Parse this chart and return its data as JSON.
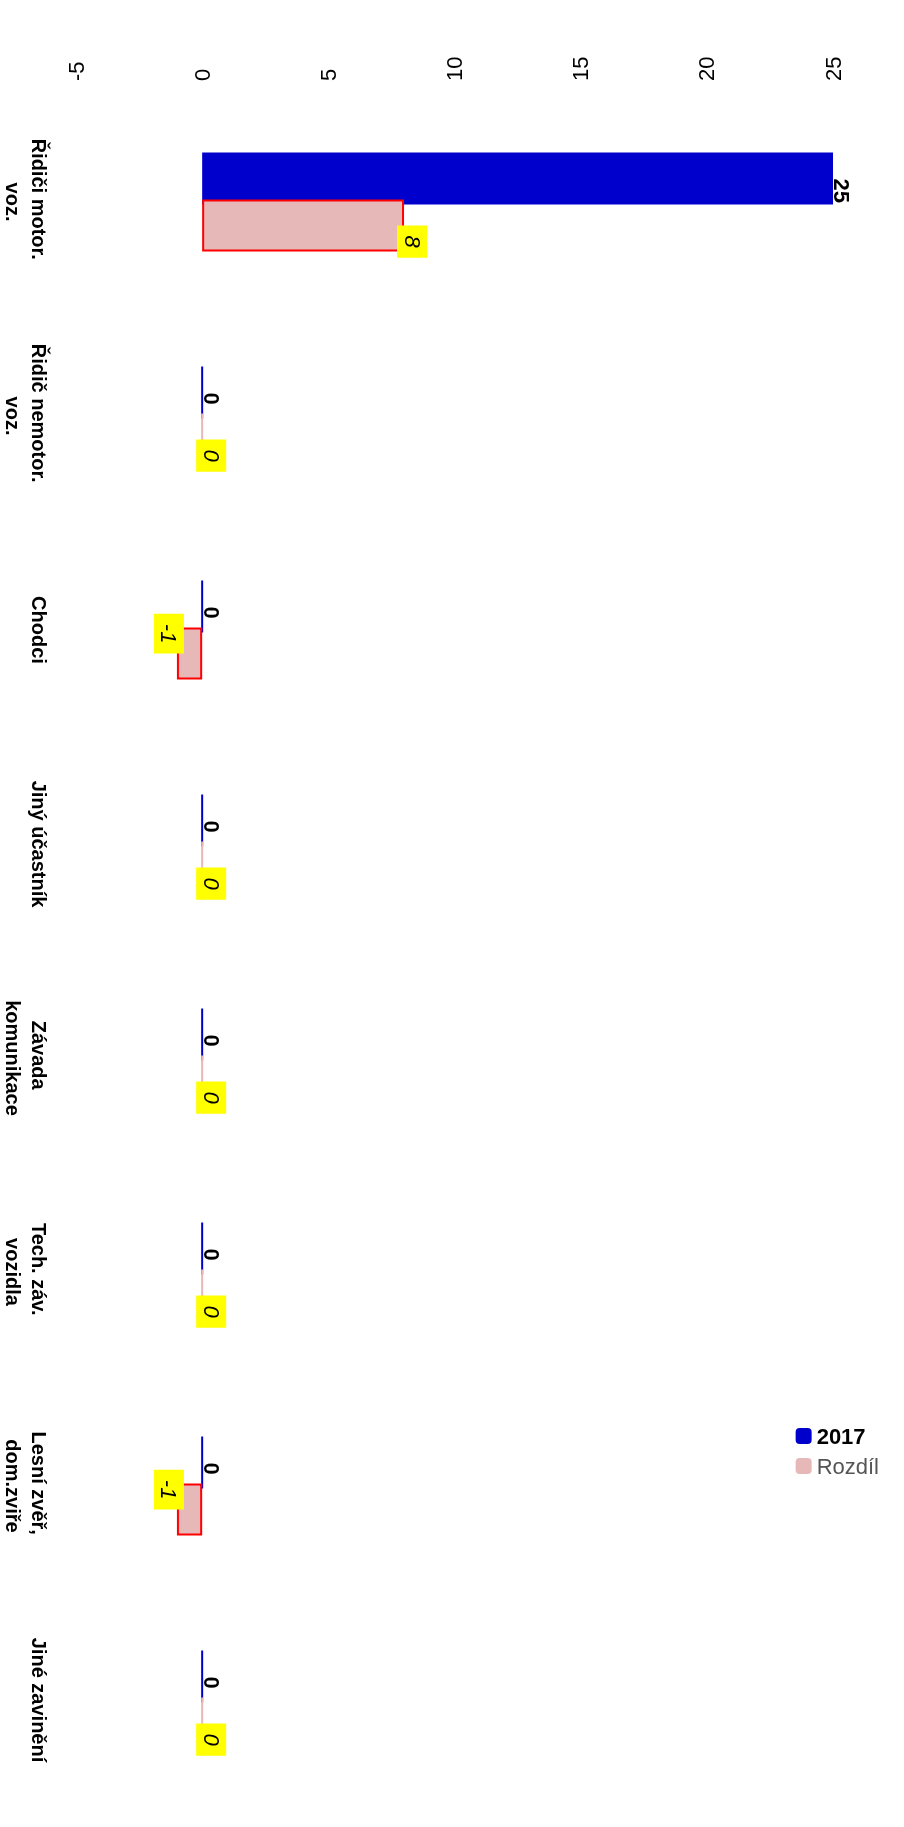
{
  "chart_data": {
    "type": "bar",
    "orientation": "horizontal",
    "categories": [
      "Řidiči motor. voz.",
      "Řidič nemotor. voz.",
      "Chodci",
      "Jiný účastník",
      "Závada komunikace",
      "Tech. záv. vozidla",
      "Lesní zvěř, dom.zviře",
      "Jiné zavinění"
    ],
    "series": [
      {
        "name": "2017",
        "color": "#0000cc",
        "values": [
          25,
          0,
          0,
          0,
          0,
          0,
          0,
          0
        ]
      },
      {
        "name": "Rozdíl",
        "color": "#e6b9b8",
        "values": [
          8,
          0,
          -1,
          0,
          0,
          0,
          -1,
          0
        ]
      }
    ],
    "xlim": [
      -5,
      25
    ],
    "xticks": [
      -5,
      0,
      5,
      10,
      15,
      20,
      25
    ],
    "data_labels": true,
    "legend": "right"
  }
}
